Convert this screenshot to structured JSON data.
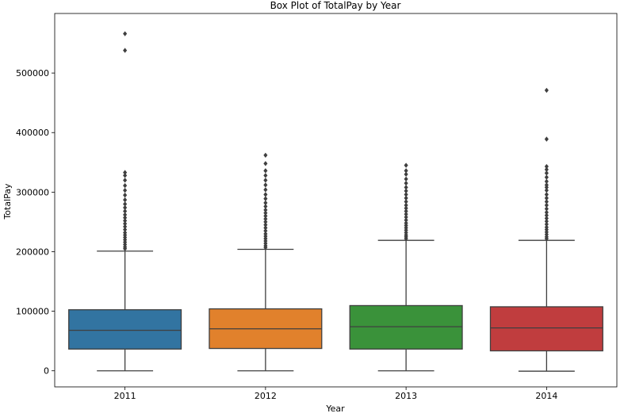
{
  "chart_data": {
    "type": "box",
    "title": "Box Plot of TotalPay by Year",
    "xlabel": "Year",
    "ylabel": "TotalPay",
    "categories": [
      "2011",
      "2012",
      "2013",
      "2014"
    ],
    "ylim": [
      -27000,
      600000
    ],
    "yticks": [
      0,
      100000,
      200000,
      300000,
      400000,
      500000
    ],
    "ytick_labels": [
      "0",
      "100000",
      "200000",
      "300000",
      "400000",
      "500000"
    ],
    "grid": false,
    "legend": "none",
    "boxes": [
      {
        "category": "2011",
        "color": "#3274a1",
        "min": 0,
        "q1": 36500,
        "median": 68000,
        "q3": 102500,
        "max": 201000,
        "outliers": [
          205000,
          208000,
          212000,
          216000,
          220000,
          224000,
          228000,
          232000,
          237000,
          242000,
          247000,
          252000,
          257000,
          262000,
          268000,
          274000,
          280000,
          287000,
          295000,
          303000,
          311000,
          320000,
          328000,
          333000,
          538000,
          566000
        ]
      },
      {
        "category": "2012",
        "color": "#e1812c",
        "min": 0,
        "q1": 37500,
        "median": 70500,
        "q3": 104000,
        "max": 204000,
        "outliers": [
          207000,
          210000,
          214000,
          218000,
          222000,
          226000,
          230000,
          235000,
          240000,
          245000,
          250000,
          255000,
          260000,
          265000,
          270000,
          276000,
          282000,
          289000,
          296000,
          304000,
          312000,
          320000,
          328000,
          336000,
          348000,
          362000
        ]
      },
      {
        "category": "2013",
        "color": "#3a923a",
        "min": 0,
        "q1": 36500,
        "median": 74000,
        "q3": 109500,
        "max": 219000,
        "outliers": [
          222000,
          225000,
          228000,
          232000,
          236000,
          240000,
          244000,
          248000,
          253000,
          258000,
          263000,
          268000,
          273000,
          278000,
          284000,
          290000,
          296000,
          302000,
          308000,
          315000,
          322000,
          330000,
          336000,
          345000
        ]
      },
      {
        "category": "2014",
        "color": "#c03d3e",
        "min": -600,
        "q1": 33500,
        "median": 72000,
        "q3": 107500,
        "max": 219000,
        "outliers": [
          222000,
          225000,
          229000,
          233000,
          237000,
          241000,
          246000,
          251000,
          256000,
          261000,
          266000,
          272000,
          278000,
          284000,
          290000,
          296000,
          303000,
          308000,
          312000,
          318000,
          325000,
          332000,
          338000,
          343000,
          389000,
          471000
        ]
      }
    ]
  }
}
